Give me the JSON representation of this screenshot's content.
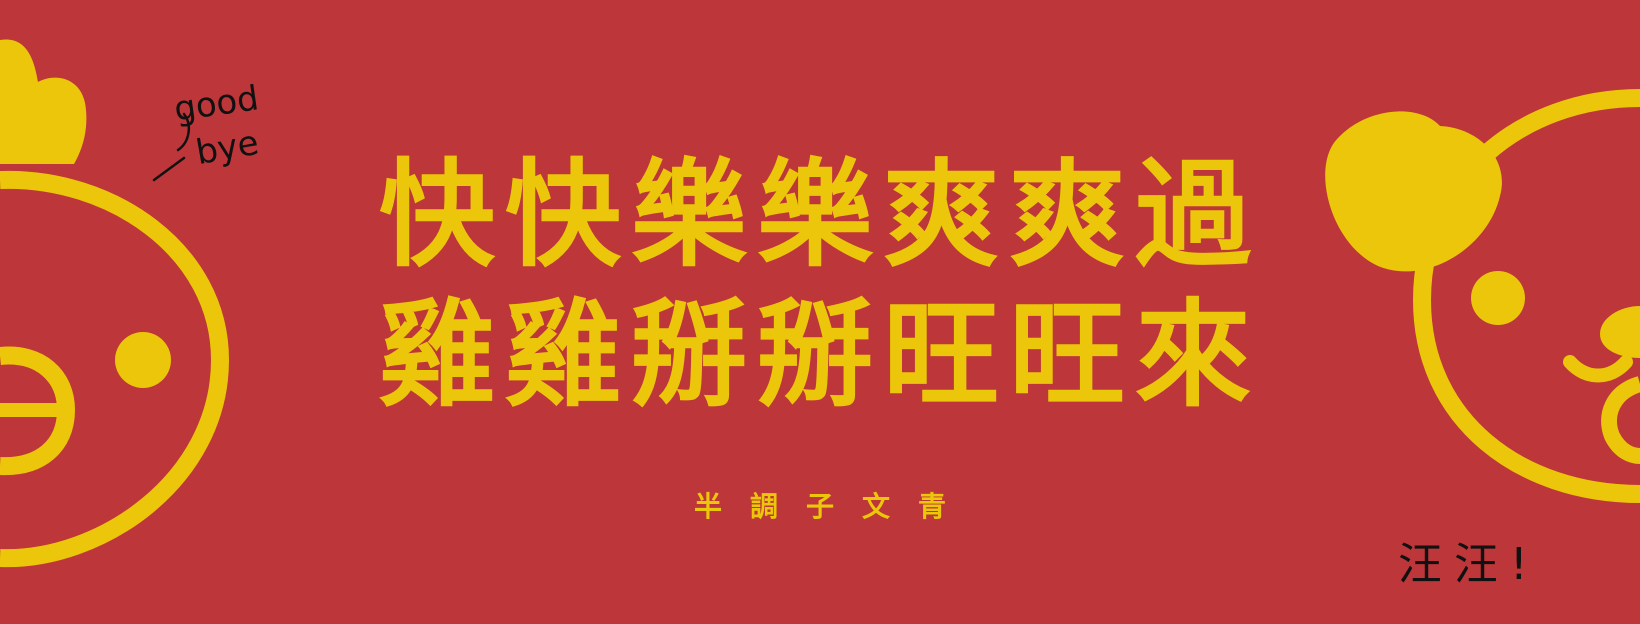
{
  "banner": {
    "headline_line1": "快快樂樂爽爽過",
    "headline_line2": "雞雞掰掰旺旺來",
    "brand": "半調子文青",
    "note_left_1": "good",
    "note_left_2": "bye",
    "note_right": "汪汪!"
  },
  "colors": {
    "background": "#BD3639",
    "accent": "#ECC60A",
    "ink": "#111111"
  },
  "icons": {
    "left": "chicken-icon",
    "right": "dog-icon"
  }
}
